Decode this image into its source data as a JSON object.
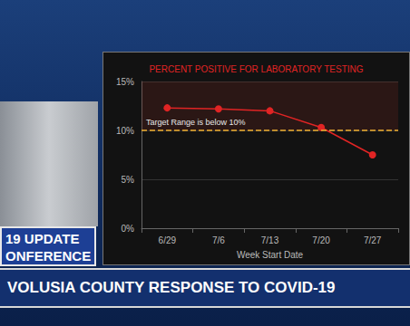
{
  "chart_data": {
    "type": "line",
    "title": "PERCENT POSITIVE FOR LABORATORY TESTING",
    "categories": [
      "6/29",
      "7/6",
      "7/13",
      "7/20",
      "7/27"
    ],
    "values": [
      12.3,
      12.2,
      12.0,
      10.3,
      7.5
    ],
    "color": "#e02424",
    "marker": "circle",
    "xlabel": "Week Start Date",
    "ylim": [
      0,
      15
    ],
    "yticks": [
      {
        "value": 0,
        "label": "0%"
      },
      {
        "value": 5,
        "label": "5%"
      },
      {
        "value": 10,
        "label": "10%"
      },
      {
        "value": 15,
        "label": "15%"
      }
    ],
    "grid": true,
    "annotations": [
      {
        "text": "Target Range is below 10%",
        "y": 10
      }
    ]
  },
  "banner": {
    "tag": [
      "19 UPDATE",
      "ONFERENCE"
    ],
    "headline": "VOLUSIA COUNTY RESPONSE TO COVID-19"
  }
}
